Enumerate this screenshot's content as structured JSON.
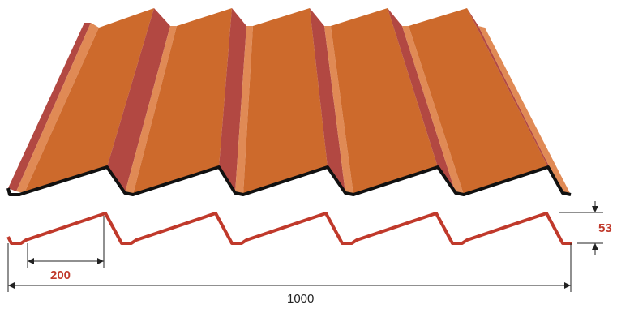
{
  "diagram": {
    "pitch_label": "200",
    "height_label": "53",
    "width_label": "1000"
  },
  "colors": {
    "sheet_face": "#cd6a2c",
    "sheet_light": "#e08a55",
    "sheet_dark": "#b24842",
    "profile_red": "#c0392b",
    "profile_black": "#111111",
    "dimension_line": "#222222",
    "label_red": "#c0392b",
    "label_dark": "#222222"
  }
}
